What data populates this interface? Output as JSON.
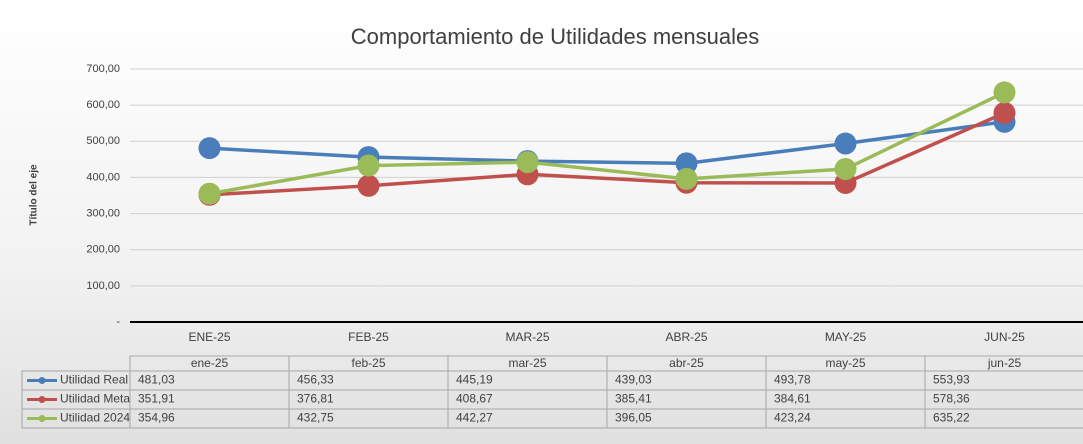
{
  "chart_data": {
    "type": "line",
    "title": "Comportamiento de Utilidades mensuales",
    "y_label": "Título del eje",
    "categories": [
      "ENE-25",
      "FEB-25",
      "MAR-25",
      "ABR-25",
      "MAY-25",
      "JUN-25"
    ],
    "table_categories": [
      "ene-25",
      "feb-25",
      "mar-25",
      "abr-25",
      "may-25",
      "jun-25"
    ],
    "series": [
      {
        "name": "Utilidad Real",
        "color": "#4a7ebb",
        "values": [
          481.03,
          456.33,
          445.19,
          439.03,
          493.78,
          553.93
        ],
        "value_labels": [
          "481,03",
          "456,33",
          "445,19",
          "439,03",
          "493,78",
          "553,93"
        ]
      },
      {
        "name": "Utilidad Meta",
        "color": "#c0504d",
        "values": [
          351.91,
          376.81,
          408.67,
          385.41,
          384.61,
          578.36
        ],
        "value_labels": [
          "351,91",
          "376,81",
          "408,67",
          "385,41",
          "384,61",
          "578,36"
        ]
      },
      {
        "name": "Utilidad 2024",
        "color": "#9bbb59",
        "values": [
          354.96,
          432.75,
          442.27,
          396.05,
          423.24,
          635.22
        ],
        "value_labels": [
          "354,96",
          "432,75",
          "442,27",
          "396,05",
          "423,24",
          "635,22"
        ]
      }
    ],
    "ylim": [
      0,
      700
    ],
    "yticks": [
      {
        "value": 0,
        "label": "-"
      },
      {
        "value": 100,
        "label": "100,00"
      },
      {
        "value": 200,
        "label": "200,00"
      },
      {
        "value": 300,
        "label": "300,00"
      },
      {
        "value": 400,
        "label": "400,00"
      },
      {
        "value": 500,
        "label": "500,00"
      },
      {
        "value": 600,
        "label": "600,00"
      },
      {
        "value": 700,
        "label": "700,00"
      }
    ],
    "grid": true
  }
}
